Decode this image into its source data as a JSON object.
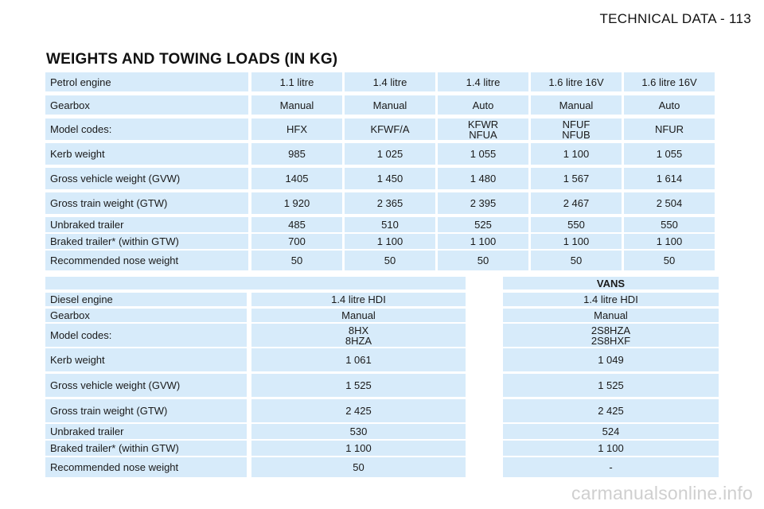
{
  "page_header": "TECHNICAL DATA - 113",
  "title": "WEIGHTS AND TOWING LOADS (IN KG)",
  "petrol_table": {
    "rows": [
      {
        "label": "Petrol engine",
        "values": [
          "1.1 litre",
          "1.4 litre",
          "1.4 litre",
          "1.6 litre 16V",
          "1.6 litre 16V"
        ]
      },
      {
        "label": "Gearbox",
        "values": [
          "Manual",
          "Manual",
          "Auto",
          "Manual",
          "Auto"
        ]
      },
      {
        "label": "Model codes:",
        "values": [
          "HFX",
          "KFWF/A",
          [
            "KFWR",
            "NFUA"
          ],
          [
            "NFUF",
            "NFUB"
          ],
          "NFUR"
        ]
      },
      {
        "label": "Kerb weight",
        "values": [
          "985",
          "1 025",
          "1 055",
          "1 100",
          "1 055"
        ]
      },
      {
        "label": "Gross vehicle weight (GVW)",
        "values": [
          "1405",
          "1 450",
          "1 480",
          "1 567",
          "1 614"
        ]
      },
      {
        "label": "Gross train weight (GTW)",
        "values": [
          "1 920",
          "2 365",
          "2 395",
          "2 467",
          "2 504"
        ]
      },
      {
        "label": "Unbraked trailer",
        "values": [
          "485",
          "510",
          "525",
          "550",
          "550"
        ]
      },
      {
        "label": "Braked trailer* (within GTW)",
        "values": [
          "700",
          "1 100",
          "1 100",
          "1 100",
          "1 100"
        ]
      },
      {
        "label": "Recommended nose weight",
        "values": [
          "50",
          "50",
          "50",
          "50",
          "50"
        ]
      }
    ]
  },
  "diesel_table": {
    "vans_header": "VANS",
    "rows": [
      {
        "label": "Diesel engine",
        "values": [
          "1.4 litre HDI",
          "1.4 litre HDI"
        ]
      },
      {
        "label": "Gearbox",
        "values": [
          "Manual",
          "Manual"
        ]
      },
      {
        "label": "Model codes:",
        "values": [
          [
            "8HX",
            "8HZA"
          ],
          [
            "2S8HZA",
            "2S8HXF"
          ]
        ]
      },
      {
        "label": "Kerb weight",
        "values": [
          "1 061",
          "1 049"
        ]
      },
      {
        "label": "Gross vehicle weight (GVW)",
        "values": [
          "1 525",
          "1 525"
        ]
      },
      {
        "label": "Gross train weight (GTW)",
        "values": [
          "2 425",
          "2 425"
        ]
      },
      {
        "label": "Unbraked trailer",
        "values": [
          "530",
          "524"
        ]
      },
      {
        "label": "Braked trailer* (within GTW)",
        "values": [
          "1 100",
          "1 100"
        ]
      },
      {
        "label": "Recommended nose weight",
        "values": [
          "50",
          "-"
        ]
      }
    ]
  },
  "watermark": "carmanualsonline.info"
}
